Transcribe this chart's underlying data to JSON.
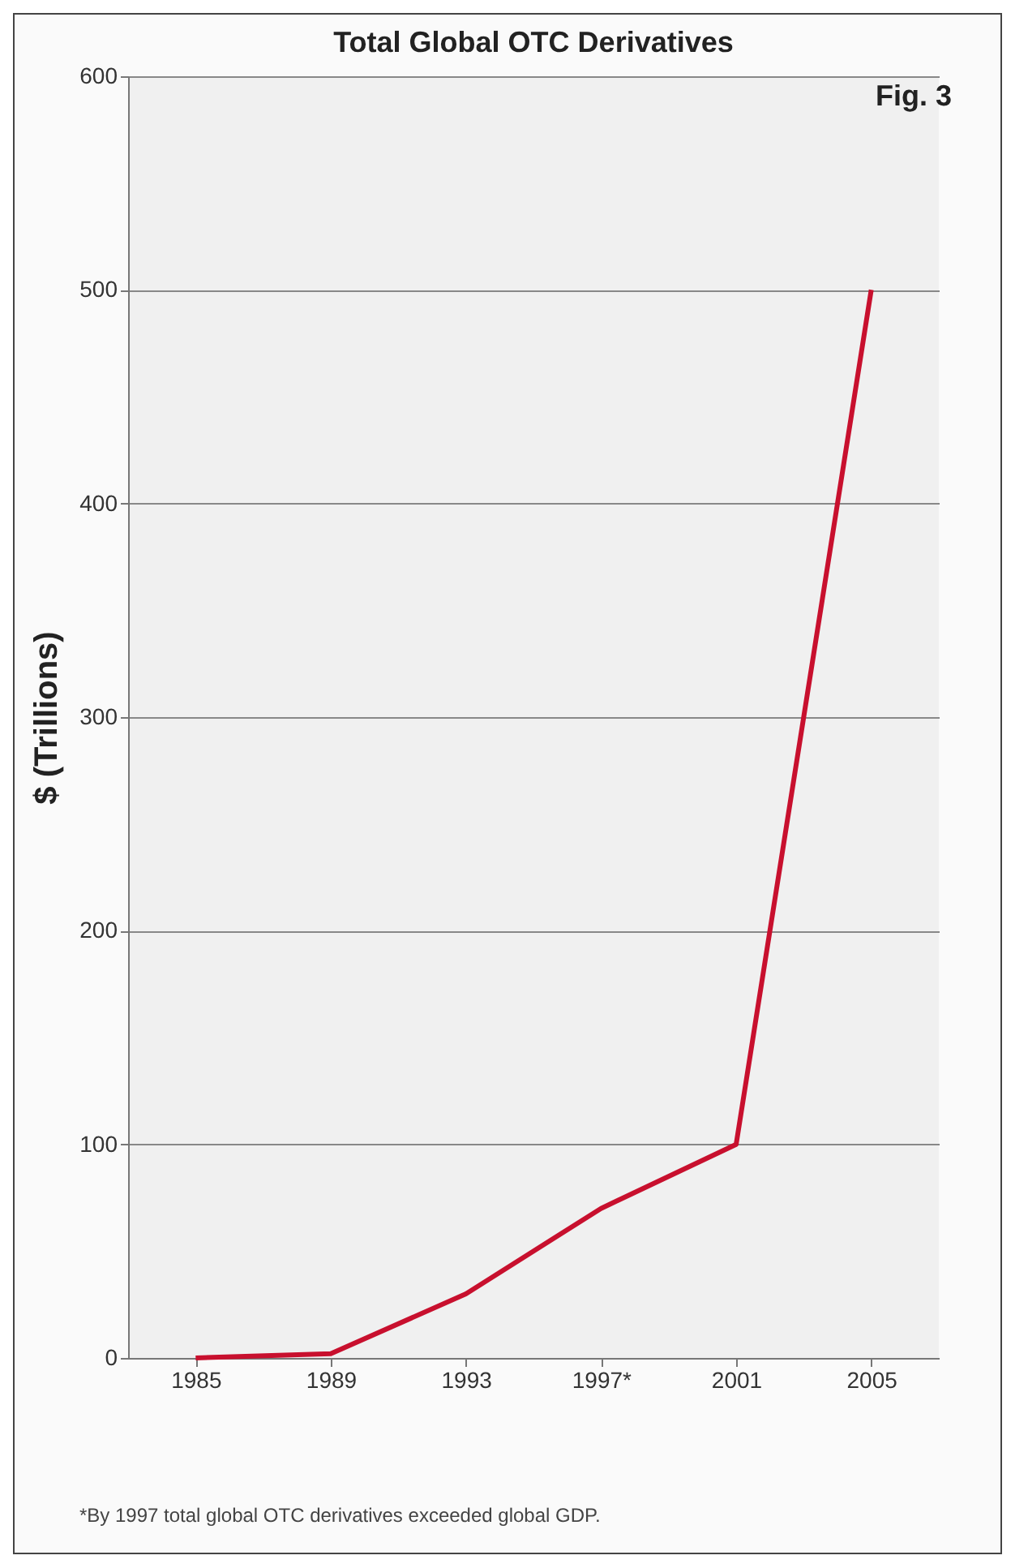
{
  "chart_data": {
    "type": "line",
    "title": "Total Global OTC Derivatives",
    "ylabel": "$ (Trillions)",
    "categories": [
      "1985",
      "1989",
      "1993",
      "1997*",
      "2001",
      "2005"
    ],
    "series": [
      {
        "color": "#c8102e",
        "values": [
          0,
          2,
          30,
          70,
          100,
          500
        ]
      }
    ],
    "ylim": [
      0,
      600
    ],
    "yticks": [
      0,
      100,
      200,
      300,
      400,
      500,
      600
    ],
    "grid": "y",
    "marker": "none",
    "line_style": "solid",
    "annotations": [
      "Fig. 3",
      "*By 1997 total global OTC derivatives exceeded global GDP."
    ]
  }
}
